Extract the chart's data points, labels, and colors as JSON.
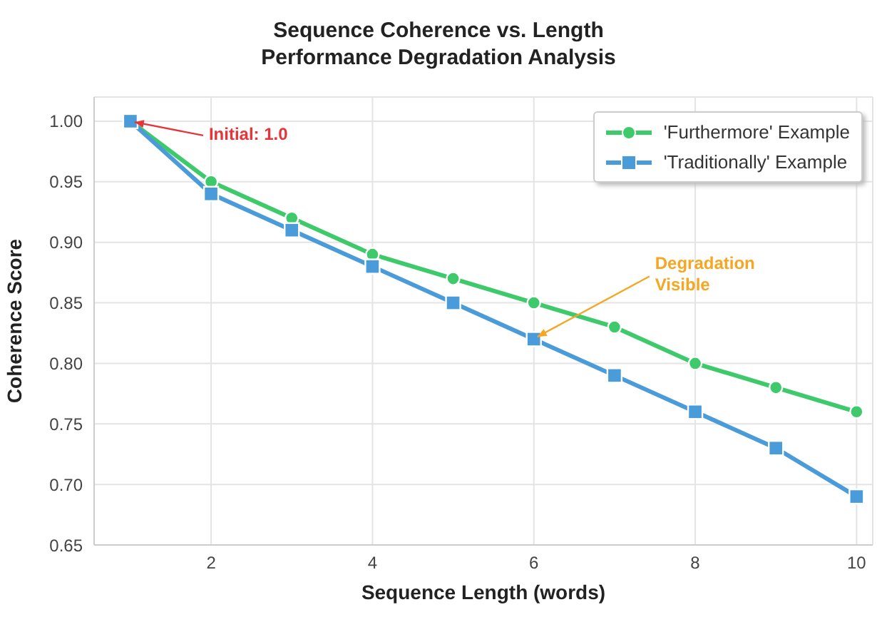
{
  "chart_data": {
    "type": "line",
    "title": "Sequence Coherence vs. Length\nPerformance Degradation Analysis",
    "xlabel": "Sequence Length (words)",
    "ylabel": "Coherence Score",
    "x": [
      1,
      2,
      3,
      4,
      5,
      6,
      7,
      8,
      9,
      10
    ],
    "series": [
      {
        "name": "'Furthermore' Example",
        "color": "#3ec96b",
        "marker": "circle",
        "values": [
          1.0,
          0.95,
          0.92,
          0.89,
          0.87,
          0.85,
          0.83,
          0.8,
          0.78,
          0.76
        ]
      },
      {
        "name": "'Traditionally' Example",
        "color": "#4a9bd9",
        "marker": "square",
        "values": [
          1.0,
          0.94,
          0.91,
          0.88,
          0.85,
          0.82,
          0.79,
          0.76,
          0.73,
          0.69
        ]
      }
    ],
    "xlim": [
      0.55,
      10.2
    ],
    "xticks": [
      2,
      4,
      6,
      8,
      10
    ],
    "ylim": [
      0.65,
      1.02
    ],
    "yticks": [
      0.65,
      {
        "value": 0.7,
        "label": "0.70"
      },
      0.75,
      {
        "value": 0.8,
        "label": "0.80"
      },
      0.85,
      {
        "value": 0.9,
        "label": "0.90"
      },
      0.95,
      {
        "value": 1,
        "label": "1.00"
      }
    ],
    "annotations": [
      {
        "text": "Initial: 1.0",
        "x": 1,
        "y": 1.0
      },
      {
        "text": "Degradation\nVisible",
        "x": 6,
        "y": 0.82
      }
    ],
    "grid": true,
    "legend": "top right",
    "line_style": "solid"
  }
}
